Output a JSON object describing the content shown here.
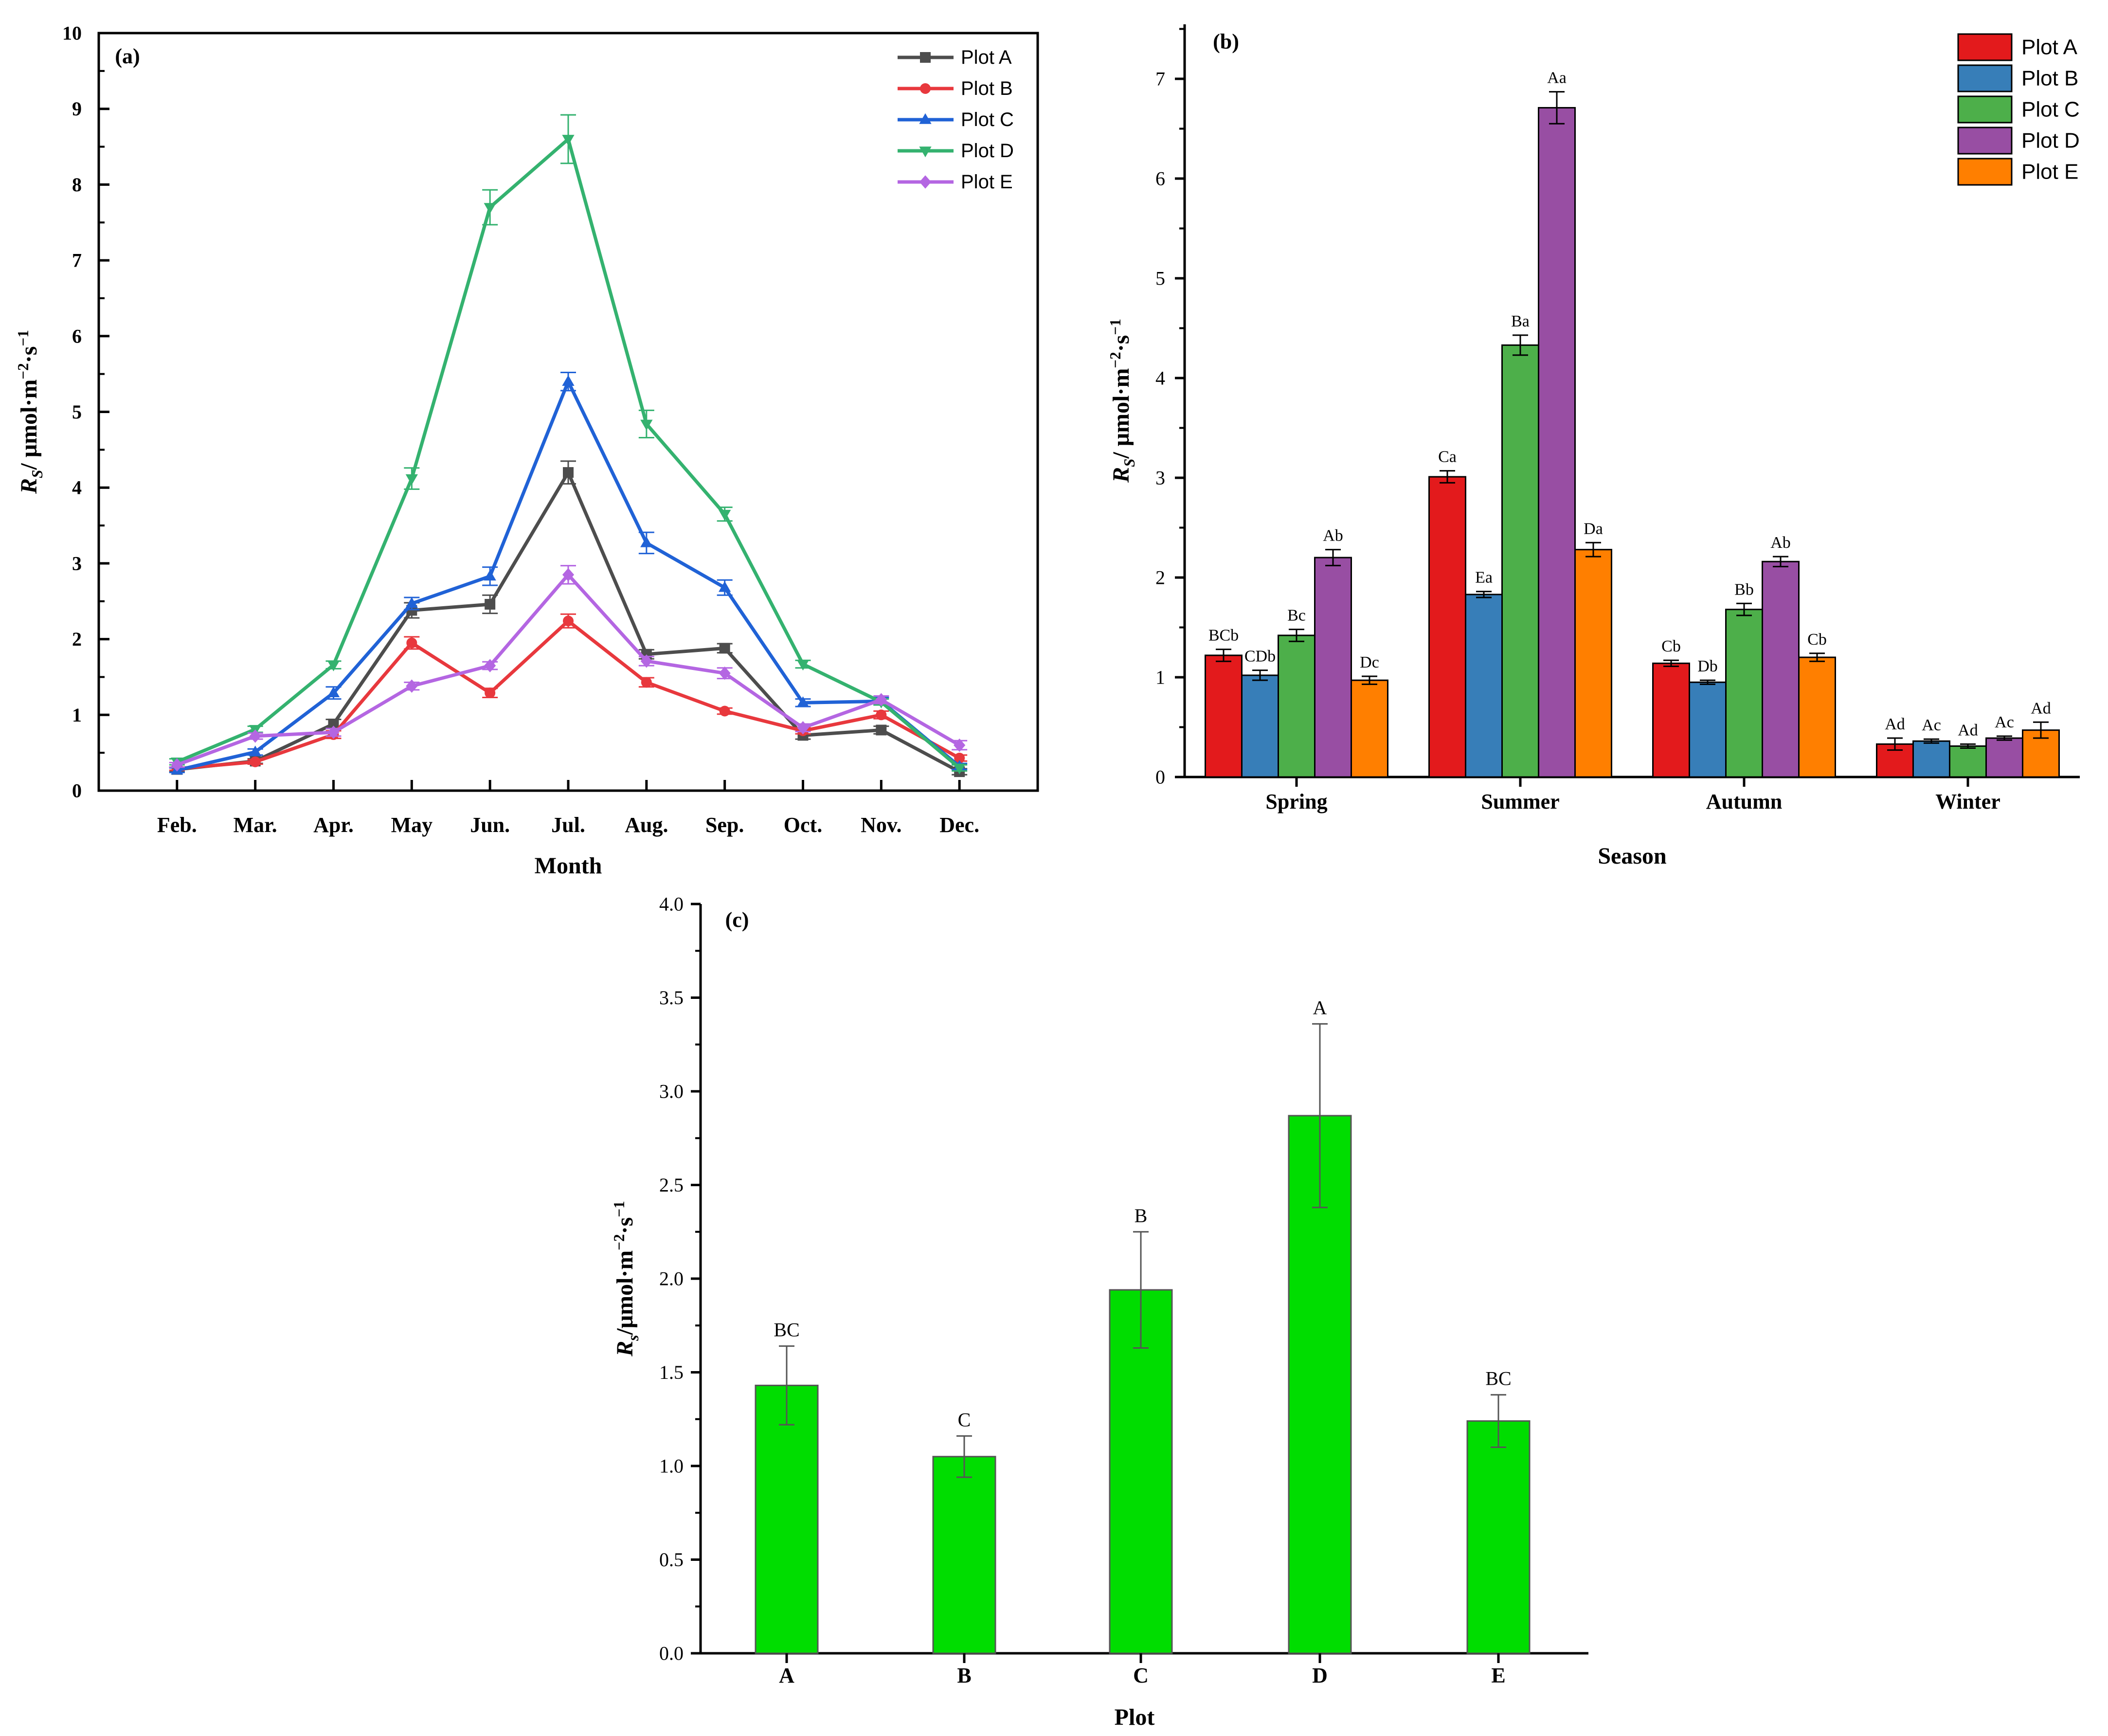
{
  "chart_data": [
    {
      "id": "a",
      "type": "line",
      "panel_label": "(a)",
      "xlabel": "Month",
      "ylabel_main": "R",
      "ylabel_sub": "S",
      "ylabel_unit": "/ μmol·m",
      "ylabel_exp1": "−2",
      "ylabel_mid": "·s",
      "ylabel_exp2": "−1",
      "ylim": [
        0,
        10
      ],
      "yticks": [
        "0",
        "1",
        "2",
        "3",
        "4",
        "5",
        "6",
        "7",
        "8",
        "9",
        "10"
      ],
      "categories": [
        "Feb.",
        "Mar.",
        "Apr.",
        "May",
        "Jun.",
        "Jul.",
        "Aug.",
        "Sep.",
        "Oct.",
        "Nov.",
        "Dec."
      ],
      "legend_position": "top-right",
      "series": [
        {
          "name": "Plot A",
          "color": "#4d4d4d",
          "marker": "square",
          "values": [
            0.28,
            0.39,
            0.88,
            2.38,
            2.46,
            4.2,
            1.8,
            1.88,
            0.73,
            0.8,
            0.25
          ],
          "errors": [
            0.03,
            0.03,
            0.06,
            0.1,
            0.12,
            0.15,
            0.06,
            0.06,
            0.05,
            0.05,
            0.04
          ]
        },
        {
          "name": "Plot B",
          "color": "#e8383d",
          "marker": "circle",
          "values": [
            0.29,
            0.38,
            0.74,
            1.95,
            1.29,
            2.24,
            1.43,
            1.05,
            0.79,
            1.0,
            0.43
          ],
          "errors": [
            0.02,
            0.03,
            0.05,
            0.08,
            0.06,
            0.09,
            0.06,
            0.04,
            0.04,
            0.05,
            0.04
          ]
        },
        {
          "name": "Plot C",
          "color": "#2062d6",
          "marker": "triangle-up",
          "values": [
            0.27,
            0.51,
            1.29,
            2.47,
            2.83,
            5.4,
            3.27,
            2.68,
            1.16,
            1.18,
            0.32
          ],
          "errors": [
            0.03,
            0.04,
            0.08,
            0.08,
            0.12,
            0.12,
            0.14,
            0.1,
            0.05,
            0.05,
            0.04
          ]
        },
        {
          "name": "Plot D",
          "color": "#34b26f",
          "marker": "triangle-down",
          "values": [
            0.38,
            0.81,
            1.66,
            4.12,
            7.7,
            8.6,
            4.84,
            3.65,
            1.67,
            1.17,
            0.3
          ],
          "errors": [
            0.04,
            0.04,
            0.05,
            0.14,
            0.23,
            0.32,
            0.18,
            0.09,
            0.05,
            0.04,
            0.04
          ]
        },
        {
          "name": "Plot E",
          "color": "#b466e2",
          "marker": "diamond",
          "values": [
            0.34,
            0.72,
            0.77,
            1.38,
            1.65,
            2.85,
            1.71,
            1.55,
            0.83,
            1.2,
            0.6
          ],
          "errors": [
            0.03,
            0.04,
            0.05,
            0.05,
            0.05,
            0.12,
            0.06,
            0.07,
            0.05,
            0.05,
            0.06
          ]
        }
      ]
    },
    {
      "id": "b",
      "type": "bar",
      "panel_label": "(b)",
      "xlabel": "Season",
      "ylabel_main": "R",
      "ylabel_sub": "S",
      "ylabel_unit": "/ μmol·m",
      "ylabel_exp1": "−2",
      "ylabel_mid": "·s",
      "ylabel_exp2": "−1",
      "ylim": [
        0,
        7.5
      ],
      "yticks": [
        "0",
        "1",
        "2",
        "3",
        "4",
        "5",
        "6",
        "7"
      ],
      "categories": [
        "Spring",
        "Summer",
        "Autumn",
        "Winter"
      ],
      "legend_position": "top-right",
      "series": [
        {
          "name": "Plot A",
          "color": "#e31a1c",
          "values": [
            1.22,
            3.01,
            1.14,
            0.33
          ],
          "errors": [
            0.06,
            0.06,
            0.03,
            0.06
          ],
          "labels": [
            "BCb",
            "Ca",
            "Cb",
            "Ad"
          ]
        },
        {
          "name": "Plot B",
          "color": "#377eb8",
          "values": [
            1.02,
            1.83,
            0.95,
            0.36
          ],
          "errors": [
            0.05,
            0.03,
            0.02,
            0.02
          ],
          "labels": [
            "CDb",
            "Ea",
            "Db",
            "Ac"
          ]
        },
        {
          "name": "Plot C",
          "color": "#4daf4a",
          "values": [
            1.42,
            4.33,
            1.68,
            0.31
          ],
          "errors": [
            0.06,
            0.1,
            0.06,
            0.02
          ],
          "labels": [
            "Bc",
            "Ba",
            "Bb",
            "Ad"
          ]
        },
        {
          "name": "Plot D",
          "color": "#984ea3",
          "values": [
            2.2,
            6.71,
            2.16,
            0.39
          ],
          "errors": [
            0.08,
            0.16,
            0.05,
            0.02
          ],
          "labels": [
            "Ab",
            "Aa",
            "Ab",
            "Ac"
          ]
        },
        {
          "name": "Plot E",
          "color": "#ff7f00",
          "values": [
            0.97,
            2.28,
            1.2,
            0.47
          ],
          "errors": [
            0.04,
            0.07,
            0.04,
            0.08
          ],
          "labels": [
            "Dc",
            "Da",
            "Cb",
            "Ad"
          ]
        }
      ]
    },
    {
      "id": "c",
      "type": "bar",
      "panel_label": "(c)",
      "xlabel": "Plot",
      "ylabel_main": "R",
      "ylabel_sub": "s",
      "ylabel_unit": "/μmol·m",
      "ylabel_exp1": "−2",
      "ylabel_mid": "·s",
      "ylabel_exp2": "−1",
      "ylim": [
        0,
        4.0
      ],
      "yticks": [
        "0.0",
        "0.5",
        "1.0",
        "1.5",
        "2.0",
        "2.5",
        "3.0",
        "3.5",
        "4.0"
      ],
      "categories": [
        "A",
        "B",
        "C",
        "D",
        "E"
      ],
      "color": "#00dd00",
      "values": [
        1.43,
        1.05,
        1.94,
        2.87,
        1.24
      ],
      "errors": [
        0.21,
        0.11,
        0.31,
        0.49,
        0.14
      ],
      "labels": [
        "BC",
        "C",
        "B",
        "A",
        "BC"
      ]
    }
  ]
}
